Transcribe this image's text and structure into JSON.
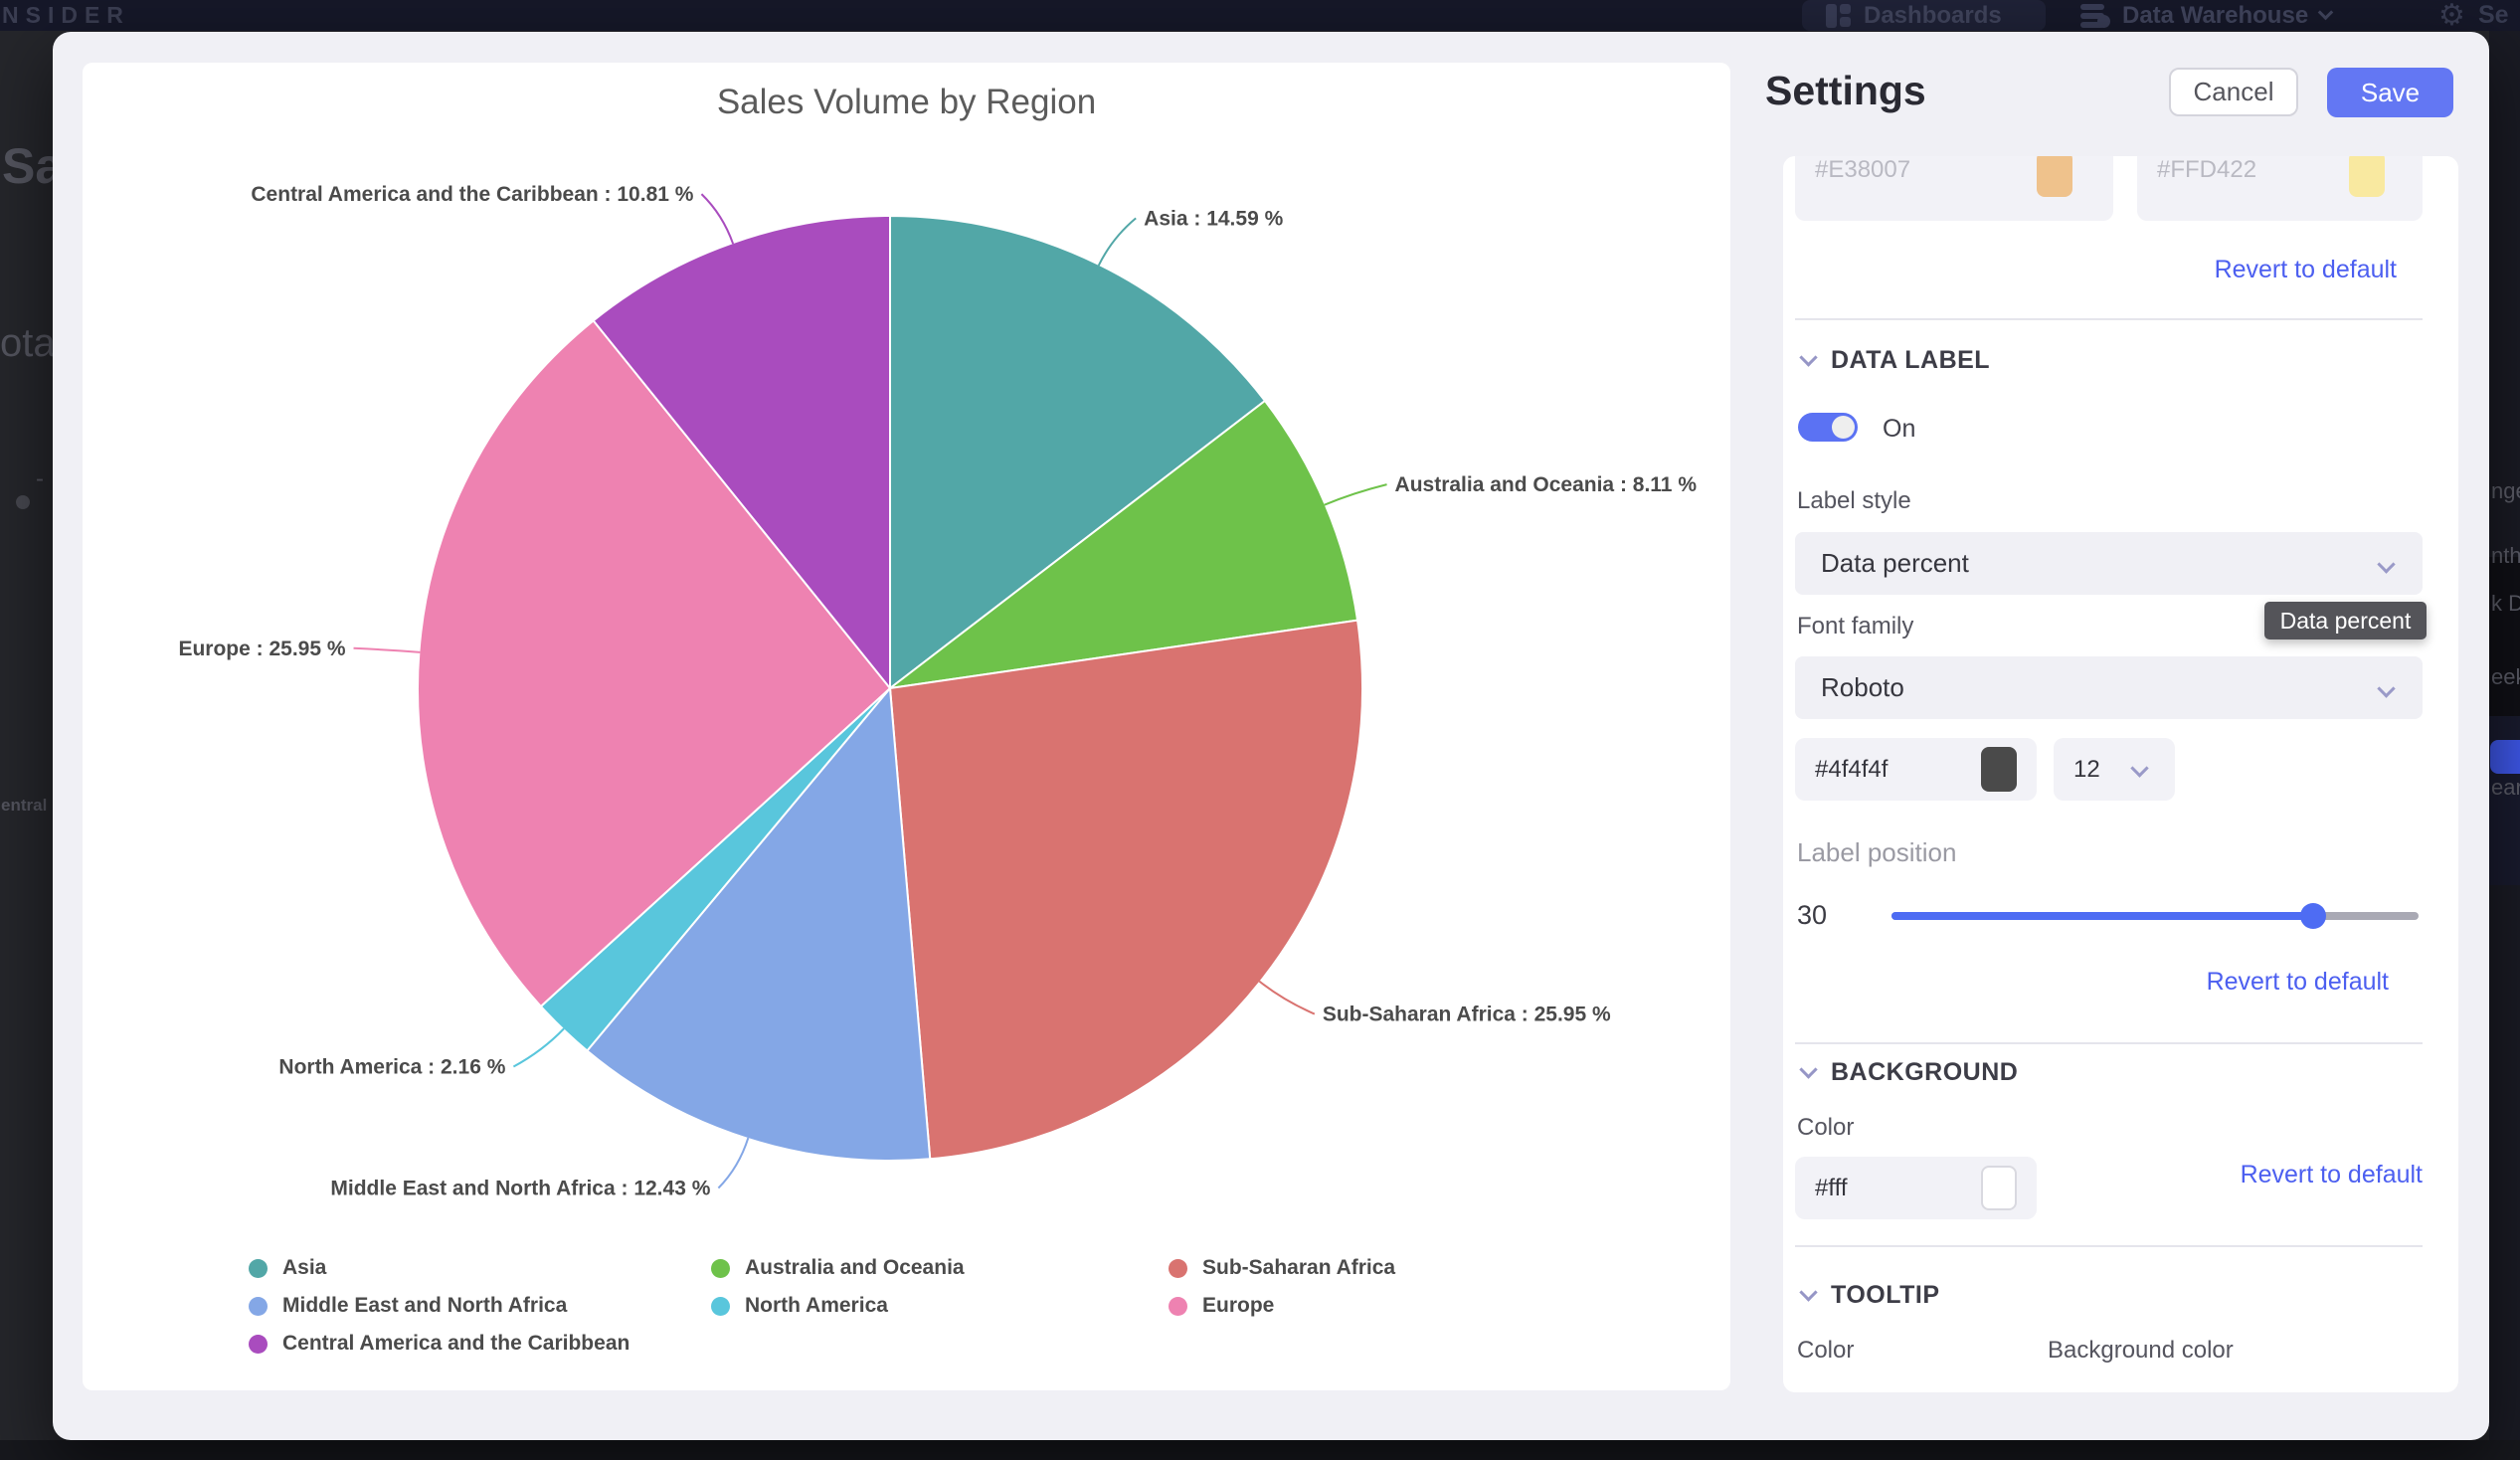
{
  "topbar": {
    "logo": "NSIDER",
    "nav_dashboards": "Dashboards",
    "nav_data_warehouse": "Data Warehouse",
    "nav_settings_fragment": "Se"
  },
  "background_fragments": {
    "left": {
      "f1": "Sal",
      "f2": "ota",
      "f3": "-",
      "f4": "entral"
    },
    "right": {
      "f1": "nge",
      "f2": "nth",
      "f3": "k D",
      "f4": "eek",
      "f5": "ear"
    }
  },
  "settings": {
    "title": "Settings",
    "cancel_label": "Cancel",
    "save_label": "Save",
    "revert_label": "Revert to default",
    "color_inputs": {
      "first_value": "#E38007",
      "first_swatch": "#efc28c",
      "second_value": "#FFD422",
      "second_swatch": "#f9e9a0"
    },
    "data_label_section": {
      "heading": "DATA LABEL",
      "toggle_state": "On",
      "label_style_label": "Label style",
      "label_style_value": "Data percent",
      "tooltip_text": "Data percent",
      "font_family_label": "Font family",
      "font_family_value": "Roboto",
      "font_color_value": "#4f4f4f",
      "font_color_swatch": "#4a4a4a",
      "font_size_value": "12",
      "label_position_label": "Label position",
      "label_position_value": "30",
      "slider_fill_percent": 80
    },
    "background_section": {
      "heading": "BACKGROUND",
      "color_label": "Color",
      "color_value": "#fff",
      "color_swatch": "#ffffff"
    },
    "tooltip_section": {
      "heading": "TOOLTIP",
      "color_label": "Color",
      "background_color_label": "Background color"
    }
  },
  "chart_data": {
    "type": "pie",
    "title": "Sales Volume by Region",
    "unit": "%",
    "label_format": "{name} : {value} %",
    "start_angle_deg": 0,
    "direction": "clockwise",
    "legend_position": "bottom",
    "slices": [
      {
        "name": "Asia",
        "value": 14.59,
        "color": "#52A7A7"
      },
      {
        "name": "Australia and Oceania",
        "value": 8.11,
        "color": "#6EC24A"
      },
      {
        "name": "Sub-Saharan Africa",
        "value": 25.95,
        "color": "#D97370"
      },
      {
        "name": "Middle East and North Africa",
        "value": 12.43,
        "color": "#84A7E6"
      },
      {
        "name": "North America",
        "value": 2.16,
        "color": "#59C6DC"
      },
      {
        "name": "Europe",
        "value": 25.95,
        "color": "#EE82B1"
      },
      {
        "name": "Central America and the Caribbean",
        "value": 10.81,
        "color": "#A94CBE"
      }
    ],
    "legend_columns": [
      [
        "Asia",
        "Middle East and North Africa",
        "Central America and the Caribbean"
      ],
      [
        "Australia and Oceania",
        "North America"
      ],
      [
        "Sub-Saharan Africa",
        "Europe"
      ]
    ]
  },
  "theme": {
    "accent_save": "#6377f3",
    "link_blue": "#4c5ff0",
    "toggle_blue": "#5b72f3",
    "slider_blue": "#4e6cf3",
    "tooltip_bg": "#545459",
    "label_text": "#4b4b4b"
  }
}
